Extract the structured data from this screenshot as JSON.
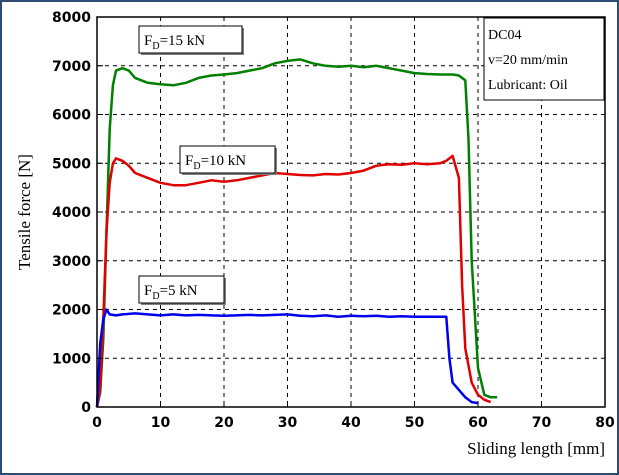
{
  "chart_data": {
    "type": "line",
    "xlabel": "Sliding length [mm]",
    "ylabel": "Tensile force [N]",
    "xlim": [
      0,
      80
    ],
    "ylim": [
      0,
      8000
    ],
    "x_ticks": [
      "0",
      "10",
      "20",
      "30",
      "40",
      "50",
      "60",
      "70",
      "80"
    ],
    "y_ticks": [
      "0",
      "1000",
      "2000",
      "3000",
      "4000",
      "5000",
      "6000",
      "7000",
      "8000"
    ],
    "grid": true,
    "annotation_lines": [
      "DC04",
      "v=20 mm/min",
      "Lubricant: Oil"
    ],
    "series": [
      {
        "name": "F_D=15 kN",
        "label_main": "F",
        "label_sub": "D",
        "label_tail": "=15 kN",
        "color": "#008000",
        "x": [
          0,
          0.5,
          1,
          1.5,
          2,
          2.5,
          3,
          4,
          5,
          6,
          8,
          10,
          12,
          14,
          16,
          18,
          20,
          22,
          24,
          26,
          28,
          30,
          32,
          34,
          36,
          38,
          40,
          42,
          44,
          46,
          48,
          50,
          52,
          54,
          55,
          56,
          57,
          58,
          58.5,
          59,
          60,
          61,
          62,
          63
        ],
        "y": [
          0,
          300,
          1400,
          3600,
          5700,
          6600,
          6900,
          6950,
          6900,
          6750,
          6650,
          6620,
          6600,
          6650,
          6750,
          6800,
          6820,
          6850,
          6900,
          6950,
          7050,
          7100,
          7130,
          7050,
          7000,
          6980,
          7000,
          6970,
          7000,
          6950,
          6900,
          6850,
          6830,
          6820,
          6820,
          6820,
          6800,
          6700,
          5500,
          3000,
          800,
          250,
          200,
          200
        ]
      },
      {
        "name": "F_D=10 kN",
        "label_main": "F",
        "label_sub": "D",
        "label_tail": "=10 kN",
        "color": "#e00000",
        "x": [
          0,
          0.5,
          1,
          1.5,
          2,
          2.5,
          3,
          4,
          5,
          6,
          8,
          10,
          12,
          14,
          16,
          18,
          20,
          22,
          24,
          26,
          28,
          30,
          32,
          34,
          36,
          38,
          40,
          42,
          44,
          46,
          48,
          50,
          52,
          54,
          55,
          56,
          57,
          57.5,
          58,
          59,
          60,
          61,
          62
        ],
        "y": [
          0,
          400,
          1800,
          3600,
          4600,
          5000,
          5100,
          5050,
          4950,
          4800,
          4700,
          4600,
          4550,
          4550,
          4600,
          4650,
          4620,
          4650,
          4700,
          4750,
          4800,
          4780,
          4760,
          4750,
          4780,
          4770,
          4800,
          4850,
          4950,
          4980,
          4970,
          5000,
          4980,
          5000,
          5050,
          5150,
          4700,
          2500,
          1200,
          500,
          250,
          150,
          100
        ]
      },
      {
        "name": "F_D=5 kN",
        "label_main": "F",
        "label_sub": "D",
        "label_tail": "=5 kN",
        "color": "#0000ee",
        "x": [
          0,
          0.5,
          1,
          1.5,
          2,
          3,
          4,
          6,
          8,
          10,
          12,
          14,
          16,
          18,
          20,
          22,
          24,
          26,
          28,
          30,
          32,
          34,
          36,
          38,
          40,
          42,
          44,
          46,
          48,
          50,
          52,
          54,
          55,
          55.5,
          56,
          57,
          58,
          59,
          60
        ],
        "y": [
          0,
          1300,
          1800,
          2000,
          1900,
          1880,
          1900,
          1920,
          1900,
          1880,
          1900,
          1880,
          1890,
          1880,
          1870,
          1880,
          1890,
          1880,
          1890,
          1900,
          1870,
          1860,
          1880,
          1850,
          1870,
          1860,
          1870,
          1850,
          1860,
          1850,
          1850,
          1850,
          1850,
          1000,
          500,
          350,
          200,
          100,
          80
        ]
      }
    ]
  }
}
